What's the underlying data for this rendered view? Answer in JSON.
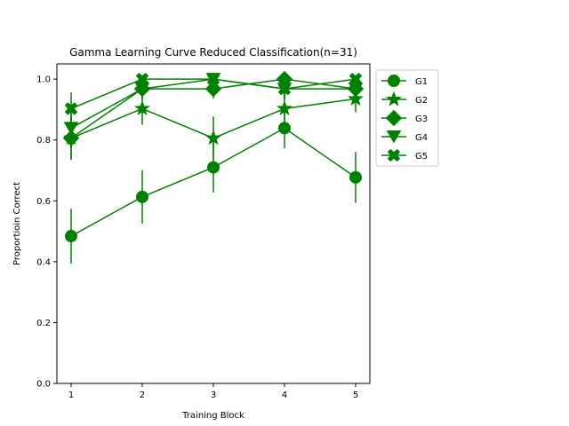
{
  "chart_data": {
    "type": "line",
    "title": "Gamma Learning Curve Reduced Classification(n=31)",
    "xlabel": "Training Block",
    "ylabel": "Proportioin Correct",
    "x": [
      1,
      2,
      3,
      4,
      5
    ],
    "xticks": [
      "1",
      "2",
      "3",
      "4",
      "5"
    ],
    "yticks": [
      "0.0",
      "0.2",
      "0.4",
      "0.6",
      "0.8",
      "1.0"
    ],
    "xlim": [
      0.8,
      5.2
    ],
    "ylim": [
      0.0,
      1.05
    ],
    "grid": false,
    "legend_position": "outside-top-right",
    "color": "#008000",
    "series": [
      {
        "name": "G1",
        "marker": "circle",
        "values": [
          0.484,
          0.613,
          0.71,
          0.839,
          0.677
        ],
        "errors": [
          0.09,
          0.088,
          0.082,
          0.066,
          0.084
        ]
      },
      {
        "name": "G2",
        "marker": "star",
        "values": [
          0.806,
          0.903,
          0.806,
          0.903,
          0.935
        ],
        "errors": [
          0.071,
          0.053,
          0.071,
          0.053,
          0.044
        ]
      },
      {
        "name": "G3",
        "marker": "diamond",
        "values": [
          0.806,
          0.968,
          0.968,
          1.0,
          0.968
        ],
        "errors": [
          0.071,
          0.032,
          0.032,
          0.0,
          0.032
        ]
      },
      {
        "name": "G4",
        "marker": "triangle-down",
        "values": [
          0.839,
          0.968,
          1.0,
          0.968,
          0.968
        ],
        "errors": [
          0.066,
          0.032,
          0.0,
          0.032,
          0.032
        ]
      },
      {
        "name": "G5",
        "marker": "x-filled",
        "values": [
          0.903,
          1.0,
          1.0,
          0.968,
          1.0
        ],
        "errors": [
          0.053,
          0.0,
          0.0,
          0.032,
          0.0
        ]
      }
    ]
  }
}
